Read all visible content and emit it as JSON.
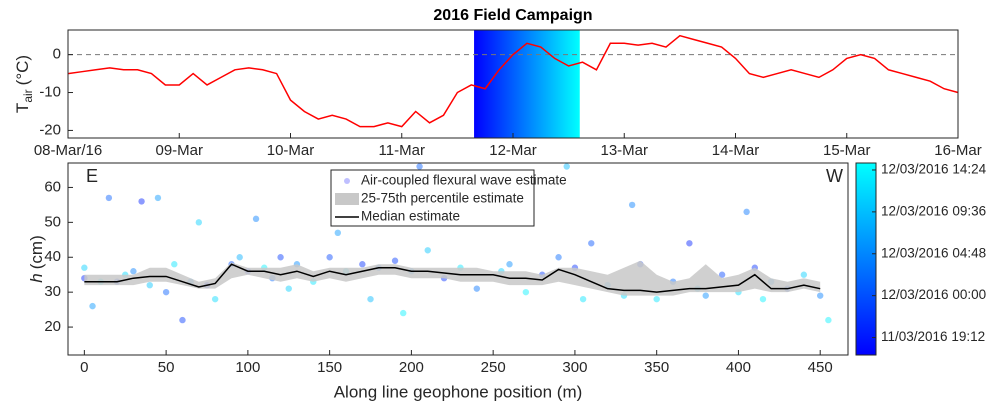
{
  "chart_data": [
    {
      "type": "line",
      "title": "2016 Field Campaign",
      "ylabel": {
        "main": "T",
        "sub": "air",
        "unit": "(°C)"
      },
      "x": [
        0,
        0.125,
        0.25,
        0.375,
        0.5,
        0.625,
        0.75,
        0.875,
        1,
        1.125,
        1.25,
        1.375,
        1.5,
        1.625,
        1.75,
        1.875,
        2,
        2.125,
        2.25,
        2.375,
        2.5,
        2.625,
        2.75,
        2.875,
        3,
        3.125,
        3.25,
        3.375,
        3.5,
        3.625,
        3.75,
        3.875,
        4,
        4.125,
        4.25,
        4.375,
        4.5,
        4.625,
        4.75,
        4.875,
        5,
        5.125,
        5.25,
        5.375,
        5.5,
        5.625,
        5.75,
        5.875,
        6,
        6.125,
        6.25,
        6.375,
        6.5,
        6.625,
        6.75,
        6.875,
        7,
        7.125,
        7.25,
        7.375,
        7.5,
        7.625,
        7.75,
        7.875,
        8
      ],
      "values": [
        -5,
        -4.5,
        -4,
        -3.5,
        -4,
        -4,
        -5,
        -8,
        -8,
        -5,
        -8,
        -6,
        -4,
        -3.5,
        -4,
        -5,
        -12,
        -15,
        -17,
        -16,
        -17,
        -19,
        -19,
        -18,
        -19,
        -15,
        -18,
        -16,
        -10,
        -8,
        -9,
        -4,
        0,
        3,
        2,
        -1,
        -3,
        -2,
        -4,
        3,
        3,
        2.5,
        3,
        2,
        5,
        4,
        3,
        2,
        -1,
        -5,
        -6,
        -5,
        -4,
        -5,
        -6,
        -4,
        -1,
        0,
        -1,
        -4,
        -5,
        -6,
        -7,
        -9,
        -10
      ],
      "color": "#ff0000",
      "xlim": [
        0,
        8
      ],
      "xticks": [
        {
          "value": 0,
          "label": "08-Mar/16"
        },
        {
          "value": 1,
          "label": "09-Mar"
        },
        {
          "value": 2,
          "label": "10-Mar"
        },
        {
          "value": 3,
          "label": "11-Mar"
        },
        {
          "value": 4,
          "label": "12-Mar"
        },
        {
          "value": 5,
          "label": "13-Mar"
        },
        {
          "value": 6,
          "label": "14-Mar"
        },
        {
          "value": 7,
          "label": "15-Mar"
        },
        {
          "value": 8,
          "label": "16-Mar"
        }
      ],
      "ylim": [
        -22,
        6.5
      ],
      "yticks": [
        -20,
        -10,
        0
      ],
      "zero_line": true,
      "highlight": {
        "xlim": [
          3.65,
          4.6
        ],
        "colormap": [
          "#0000ff",
          "#00ffff"
        ]
      }
    },
    {
      "type": "scatter",
      "xlabel": "Along line geophone position (m)",
      "ylabel": {
        "main": "h",
        "unit": "(cm)"
      },
      "annotations": [
        "E",
        "W"
      ],
      "xlim": [
        -10,
        467
      ],
      "xticks": [
        0,
        50,
        100,
        150,
        200,
        250,
        300,
        350,
        400,
        450
      ],
      "ylim": [
        12,
        67
      ],
      "yticks": [
        20,
        30,
        40,
        50,
        60
      ],
      "series": [
        {
          "name": "Air-coupled flexural wave estimate",
          "type": "scatter",
          "x": [
            0,
            0,
            5,
            10,
            15,
            20,
            25,
            30,
            35,
            40,
            45,
            50,
            55,
            60,
            65,
            70,
            75,
            80,
            90,
            95,
            100,
            105,
            110,
            115,
            120,
            125,
            130,
            140,
            150,
            155,
            160,
            170,
            175,
            180,
            190,
            195,
            200,
            205,
            210,
            220,
            230,
            240,
            250,
            255,
            260,
            270,
            280,
            290,
            295,
            300,
            305,
            310,
            320,
            330,
            335,
            340,
            350,
            360,
            370,
            375,
            380,
            390,
            400,
            405,
            410,
            415,
            420,
            430,
            440,
            450,
            455
          ],
          "values": [
            34,
            37,
            26,
            33,
            57,
            33,
            35,
            36,
            56,
            32,
            57,
            30,
            38,
            22,
            33,
            50,
            32,
            28,
            38,
            40,
            36,
            51,
            37,
            34,
            40,
            31,
            38,
            33,
            40,
            47,
            36,
            38,
            28,
            37,
            39,
            24,
            36,
            66,
            42,
            34,
            37,
            31,
            50,
            36,
            38,
            30,
            35,
            40,
            66,
            37,
            28,
            44,
            32,
            29,
            55,
            38,
            28,
            33,
            44,
            31,
            29,
            35,
            30,
            53,
            37,
            28,
            33,
            31,
            35,
            29,
            22
          ],
          "t": [
            20,
            35,
            30,
            38,
            25,
            22,
            36,
            28,
            20,
            34,
            30,
            25,
            37,
            22,
            30,
            35,
            20,
            36,
            24,
            32,
            21,
            28,
            38,
            26,
            22,
            35,
            29,
            37,
            23,
            30,
            36,
            21,
            33,
            27,
            22,
            38,
            30,
            25,
            34,
            21,
            37,
            27,
            23,
            35,
            29,
            38,
            22,
            26,
            33,
            21,
            37,
            24,
            31,
            36,
            28,
            22,
            37,
            26,
            20,
            34,
            29,
            23,
            36,
            27,
            21,
            38,
            30,
            24,
            35,
            28,
            38
          ]
        },
        {
          "name": "25-75th percentile estimate",
          "type": "band",
          "color": "#c8c8c8",
          "x": [
            0,
            10,
            20,
            30,
            40,
            50,
            60,
            70,
            80,
            90,
            100,
            110,
            120,
            130,
            140,
            150,
            160,
            170,
            180,
            190,
            200,
            210,
            220,
            230,
            240,
            250,
            260,
            270,
            280,
            290,
            300,
            310,
            320,
            330,
            340,
            350,
            360,
            370,
            380,
            390,
            400,
            410,
            420,
            430,
            440,
            450
          ],
          "lower": [
            32,
            32,
            32,
            32,
            33,
            33,
            32,
            31,
            31,
            34,
            35,
            34,
            33,
            34,
            33,
            34,
            33,
            34,
            35,
            35,
            34,
            34,
            34,
            33,
            33,
            33,
            32,
            32,
            32,
            33,
            32,
            31,
            30,
            29,
            29,
            29,
            29,
            30,
            30,
            30,
            30,
            31,
            30,
            30,
            31,
            30
          ],
          "upper": [
            35,
            35,
            35,
            35,
            37,
            37,
            35,
            33,
            34,
            38.5,
            37,
            37,
            37,
            38,
            36,
            37,
            37,
            37,
            38,
            38,
            37,
            37,
            37,
            37,
            37,
            36,
            36,
            36,
            35,
            37,
            37,
            36,
            35,
            37,
            39,
            35,
            33,
            34,
            38,
            34,
            35,
            37,
            34,
            33,
            34,
            33
          ]
        },
        {
          "name": "Median estimate",
          "type": "line",
          "color": "#000000",
          "x": [
            0,
            10,
            20,
            30,
            40,
            50,
            60,
            70,
            80,
            90,
            100,
            110,
            120,
            130,
            140,
            150,
            160,
            170,
            180,
            190,
            200,
            210,
            220,
            230,
            240,
            250,
            260,
            270,
            280,
            290,
            300,
            310,
            320,
            330,
            340,
            350,
            360,
            370,
            380,
            390,
            400,
            410,
            420,
            430,
            440,
            450
          ],
          "values": [
            33,
            33,
            33,
            34,
            34.5,
            34.5,
            33,
            31.5,
            32.5,
            38,
            36,
            36,
            35,
            36,
            34.5,
            36,
            35,
            36,
            37,
            37,
            36,
            36,
            35.5,
            35,
            35,
            35,
            34,
            34,
            33.5,
            36.5,
            35,
            33,
            31,
            30.5,
            30.5,
            30,
            30.5,
            31,
            31,
            31.5,
            32,
            35,
            31,
            31,
            32,
            31
          ]
        }
      ],
      "colorbar": {
        "clim": [
          17.2,
          39.2
        ],
        "colormap": [
          "#0000ff",
          "#00ffff"
        ],
        "ticks": [
          {
            "value": 19.2,
            "label": "11/03/2016 19:12"
          },
          {
            "value": 24,
            "label": "12/03/2016 00:00"
          },
          {
            "value": 28.8,
            "label": "12/03/2016 04:48"
          },
          {
            "value": 33.6,
            "label": "12/03/2016 09:36"
          },
          {
            "value": 38.4,
            "label": "12/03/2016 14:24"
          }
        ]
      }
    }
  ]
}
